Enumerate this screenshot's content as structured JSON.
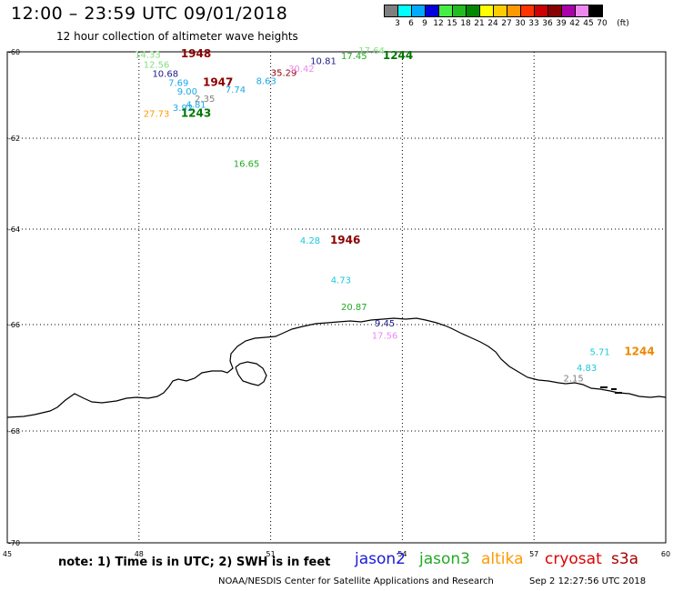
{
  "header": {
    "title": "12:00 – 23:59 UTC 09/01/2018",
    "subtitle": "12 hour collection of altimeter wave heights"
  },
  "colorbar": {
    "unit": "(ft)",
    "labels": [
      "3",
      "6",
      "9",
      "12",
      "15",
      "18",
      "21",
      "24",
      "27",
      "30",
      "33",
      "36",
      "39",
      "42",
      "45",
      "70"
    ],
    "colors": [
      "#7f7f7f",
      "#00ffff",
      "#00aaff",
      "#0000dd",
      "#44ee44",
      "#22bb22",
      "#008800",
      "#ffff00",
      "#ffcc00",
      "#ff9900",
      "#ff3300",
      "#cc0000",
      "#880000",
      "#aa00aa",
      "#ee88ee",
      "#000000"
    ]
  },
  "map": {
    "lat_labels": [
      "-60",
      "-62",
      "-64",
      "-66",
      "-68",
      "-70"
    ],
    "lon_labels": [
      "45",
      "48",
      "51",
      "54",
      "57",
      "60"
    ]
  },
  "observations": [
    {
      "text": "14.33",
      "lon": 48.2,
      "lat": -60.05,
      "color": "#7fdf7f"
    },
    {
      "text": "12.56",
      "lon": 48.4,
      "lat": -60.28,
      "color": "#7fdf7f"
    },
    {
      "text": "10.68",
      "lon": 48.6,
      "lat": -60.49,
      "color": "#1a1a8a"
    },
    {
      "text": "7.69",
      "lon": 48.9,
      "lat": -60.71,
      "color": "#1aa8e8"
    },
    {
      "text": "9.00",
      "lon": 49.1,
      "lat": -60.91,
      "color": "#1aa8e8"
    },
    {
      "text": "3.92",
      "lon": 49.0,
      "lat": -61.28,
      "color": "#1aa8e8"
    },
    {
      "text": "4.81",
      "lon": 49.3,
      "lat": -61.21,
      "color": "#1aa8e8"
    },
    {
      "text": "2.35",
      "lon": 49.5,
      "lat": -61.07,
      "color": "#808080"
    },
    {
      "text": "27.73",
      "lon": 48.4,
      "lat": -61.42,
      "color": "#ff9900"
    },
    {
      "text": "7.74",
      "lon": 50.2,
      "lat": -60.86,
      "color": "#1aa8e8"
    },
    {
      "text": "8.63",
      "lon": 50.9,
      "lat": -60.66,
      "color": "#1aa8e8"
    },
    {
      "text": "35.29",
      "lon": 51.3,
      "lat": -60.47,
      "color": "#8b0000"
    },
    {
      "text": "30.42",
      "lon": 51.7,
      "lat": -60.38,
      "color": "#ee88ee"
    },
    {
      "text": "10.81",
      "lon": 52.2,
      "lat": -60.2,
      "color": "#1a1a8a"
    },
    {
      "text": "17.45",
      "lon": 52.9,
      "lat": -60.08,
      "color": "#22aa22"
    },
    {
      "text": "17.64",
      "lon": 53.3,
      "lat": -59.96,
      "color": "#7fdf7f"
    },
    {
      "text": "16.65",
      "lon": 50.45,
      "lat": -62.55,
      "color": "#22aa22"
    },
    {
      "text": "4.28",
      "lon": 51.9,
      "lat": -64.23,
      "color": "#1ac8d8"
    },
    {
      "text": "4.73",
      "lon": 52.6,
      "lat": -65.06,
      "color": "#1ac8d8"
    },
    {
      "text": "20.87",
      "lon": 52.9,
      "lat": -65.62,
      "color": "#22aa22"
    },
    {
      "text": "9.45",
      "lon": 53.6,
      "lat": -65.96,
      "color": "#1a1a8a"
    },
    {
      "text": "17.56",
      "lon": 53.6,
      "lat": -66.2,
      "color": "#ee88ee"
    },
    {
      "text": "5.71",
      "lon": 58.5,
      "lat": -66.5,
      "color": "#1ac8d8"
    },
    {
      "text": "4.83",
      "lon": 58.2,
      "lat": -66.8,
      "color": "#1ac8d8"
    },
    {
      "text": "2.15",
      "lon": 57.9,
      "lat": -67.0,
      "color": "#808080"
    }
  ],
  "times": [
    {
      "text": "1948",
      "lon": 49.3,
      "lat": -60.04,
      "color": "#8b0000"
    },
    {
      "text": "1947",
      "lon": 49.8,
      "lat": -60.71,
      "color": "#8b0000"
    },
    {
      "text": "1243",
      "lon": 49.3,
      "lat": -61.42,
      "color": "#007700"
    },
    {
      "text": "1244",
      "lon": 53.9,
      "lat": -60.08,
      "color": "#007700"
    },
    {
      "text": "1946",
      "lon": 52.7,
      "lat": -64.23,
      "color": "#8b0000"
    },
    {
      "text": "1244",
      "lon": 59.4,
      "lat": -66.5,
      "color": "#ee8800"
    }
  ],
  "note": "note:  1) Time is in UTC;  2) SWH is in feet",
  "legend": [
    {
      "name": "jason2",
      "color": "#1a1ad8"
    },
    {
      "name": "jason3",
      "color": "#22aa22"
    },
    {
      "name": "altika",
      "color": "#ff9900"
    },
    {
      "name": "cryosat",
      "color": "#dd0000"
    },
    {
      "name": "s3a",
      "color": "#aa0000"
    }
  ],
  "footer": {
    "credit": "NOAA/NESDIS Center for Satellite Applications and Research",
    "timestamp": "Sep  2 12:27:56 UTC 2018"
  }
}
